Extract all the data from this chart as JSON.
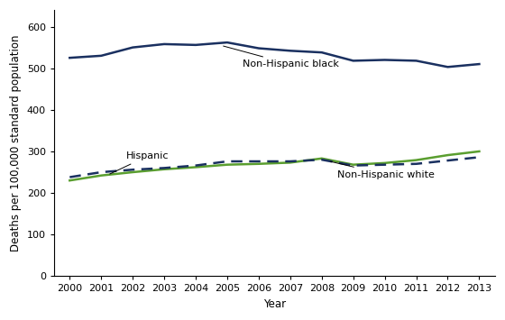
{
  "years": [
    2000,
    2001,
    2002,
    2003,
    2004,
    2005,
    2006,
    2007,
    2008,
    2009,
    2010,
    2011,
    2012,
    2013
  ],
  "non_hispanic_black": [
    525,
    530,
    550,
    558,
    556,
    562,
    548,
    542,
    538,
    518,
    520,
    518,
    503,
    510
  ],
  "hispanic": [
    230,
    242,
    250,
    257,
    262,
    268,
    270,
    273,
    283,
    268,
    272,
    279,
    291,
    300
  ],
  "non_hispanic_white": [
    238,
    250,
    256,
    260,
    266,
    276,
    276,
    276,
    280,
    266,
    268,
    270,
    278,
    286
  ],
  "black_color": "#1a3060",
  "hispanic_color": "#5a9e2f",
  "white_color": "#1a3060",
  "black_linewidth": 1.8,
  "hispanic_linewidth": 1.8,
  "white_linewidth": 1.8,
  "xlabel": "Year",
  "ylabel": "Deaths per 100,000 standard population",
  "ylim": [
    0,
    640
  ],
  "yticks": [
    0,
    100,
    200,
    300,
    400,
    500,
    600
  ],
  "label_black": "Non-Hispanic black",
  "label_hispanic": "Hispanic",
  "label_white": "Non-Hispanic white",
  "background_color": "#ffffff",
  "tick_fontsize": 8,
  "label_fontsize": 8.5,
  "annotation_fontsize": 8
}
